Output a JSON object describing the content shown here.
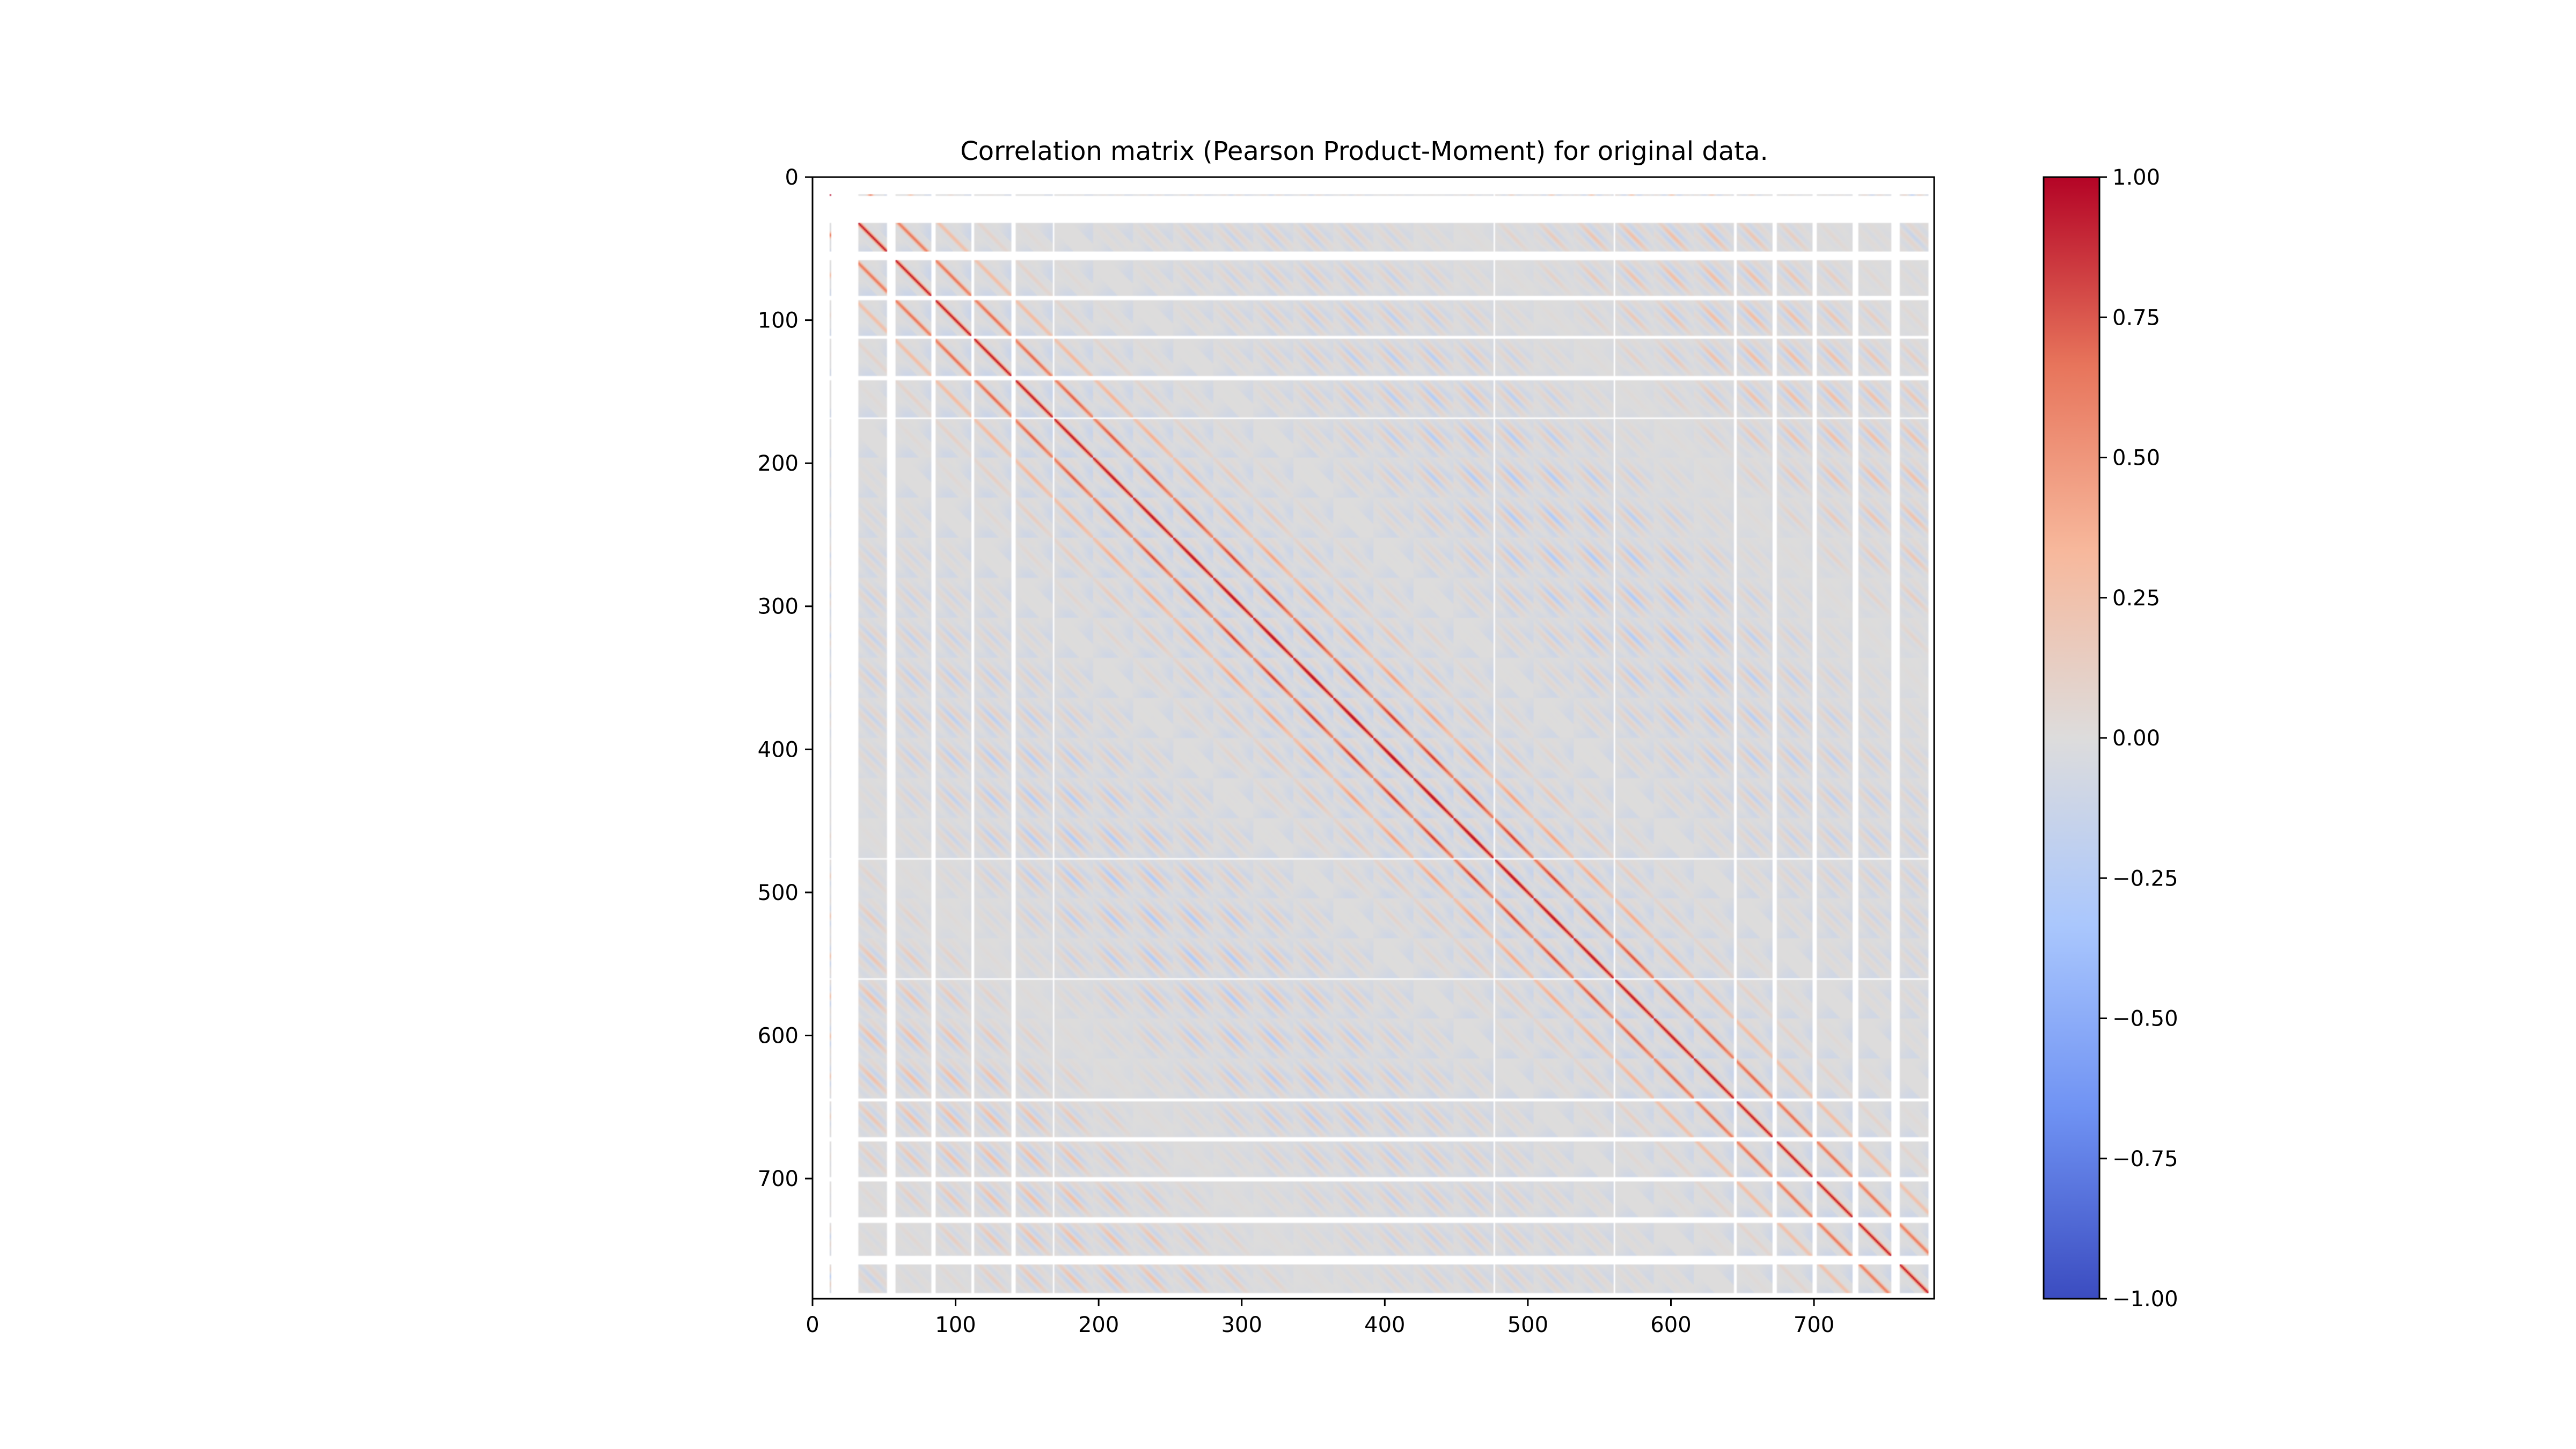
{
  "chart_data": {
    "type": "heatmap",
    "title": "Correlation matrix (Pearson Product-Moment) for original data.",
    "matrix_size": 784,
    "x_ticks": [
      0,
      100,
      200,
      300,
      400,
      500,
      600,
      700
    ],
    "x_tick_labels": [
      "0",
      "100",
      "200",
      "300",
      "400",
      "500",
      "600",
      "700"
    ],
    "y_ticks": [
      0,
      100,
      200,
      300,
      400,
      500,
      600,
      700
    ],
    "y_tick_labels": [
      "0",
      "100",
      "200",
      "300",
      "400",
      "500",
      "600",
      "700"
    ],
    "xlim": [
      0,
      784
    ],
    "ylim": [
      784,
      0
    ],
    "colormap": "coolwarm",
    "colormap_stops": [
      "#3b4cc0",
      "#6f92f3",
      "#aac7fd",
      "#dddcdc",
      "#f7b89c",
      "#e7745b",
      "#b40426"
    ],
    "colorbar": {
      "range": [
        -1.0,
        1.0
      ],
      "ticks": [
        1.0,
        0.75,
        0.5,
        0.25,
        0.0,
        -0.25,
        -0.5,
        -0.75,
        -1.0
      ],
      "tick_labels": [
        "1.00",
        "0.75",
        "0.50",
        "0.25",
        "0.00",
        "−0.25",
        "−0.50",
        "−0.75",
        "−1.00"
      ]
    },
    "pattern": {
      "description_values": "diagonal = 1.0; near-diagonal bands at offsets of 1 and 28 cells with correlation ~0.6-0.8; periodic off-diagonal blobs every 28 cells with values in [-0.35, 0.45]; undefined (constant-pixel) rows/cols rendered white",
      "diagonal_value": 1.0,
      "period": 28,
      "off_diagonal_range": [
        -0.35,
        0.45
      ],
      "blank_indices": [
        0,
        1,
        2,
        3,
        4,
        5,
        6,
        7,
        8,
        9,
        10,
        11,
        13,
        14,
        15,
        16,
        17,
        18,
        19,
        20,
        21,
        22,
        23,
        24,
        25,
        26,
        27,
        28,
        29,
        30,
        31,
        52,
        53,
        54,
        55,
        56,
        57,
        83,
        84,
        85,
        111,
        112,
        139,
        140,
        141,
        168,
        476,
        560,
        644,
        645,
        671,
        672,
        673,
        699,
        700,
        701,
        727,
        728,
        729,
        730,
        754,
        755,
        756,
        757,
        758,
        759,
        780,
        781,
        782,
        783
      ]
    }
  }
}
